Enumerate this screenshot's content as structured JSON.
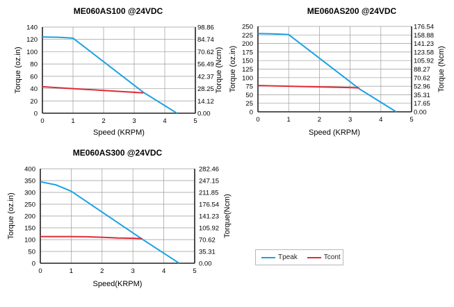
{
  "chart_data": [
    {
      "type": "line",
      "title": "ME060AS100 @24VDC",
      "xlabel": "Speed (KRPM)",
      "ylabel": "Torque (oz.in)",
      "y2label": "Torque (Ncm)",
      "xlim": [
        0,
        5
      ],
      "ylim": [
        0,
        140
      ],
      "xticks": [
        "0",
        "1",
        "2",
        "3",
        "4",
        "5"
      ],
      "yticks": [
        "0",
        "20",
        "40",
        "60",
        "80",
        "100",
        "120",
        "140"
      ],
      "y2ticks": [
        "0.00",
        "14.12",
        "28.25",
        "42.37",
        "56.49",
        "70.62",
        "84.74",
        "98.86"
      ],
      "grid": true,
      "series": [
        {
          "name": "Tpeak",
          "color": "#1ba1e2",
          "x": [
            0,
            0.5,
            1,
            3.3,
            4.4
          ],
          "y": [
            124,
            123.5,
            122,
            34,
            0
          ]
        },
        {
          "name": "Tcont",
          "color": "#e02a35",
          "x": [
            0,
            1,
            2,
            3,
            3.3
          ],
          "y": [
            43,
            40,
            37,
            34,
            33
          ]
        }
      ]
    },
    {
      "type": "line",
      "title": "ME060AS200 @24VDC",
      "xlabel": "Speed (KRPM)",
      "ylabel": "Torque (oz.in)",
      "y2label": "Torque (Ncm)",
      "xlim": [
        0,
        5
      ],
      "ylim": [
        0,
        250
      ],
      "xticks": [
        "0",
        "1",
        "2",
        "3",
        "4",
        "5"
      ],
      "yticks": [
        "0",
        "25",
        "50",
        "75",
        "100",
        "125",
        "150",
        "175",
        "200",
        "225",
        "250"
      ],
      "y2ticks": [
        "0.00",
        "17.65",
        "35.31",
        "52.96",
        "70.62",
        "88.27",
        "105.92",
        "123.58",
        "141.23",
        "158.88",
        "176.54"
      ],
      "grid": true,
      "series": [
        {
          "name": "Tpeak",
          "color": "#1ba1e2",
          "x": [
            0,
            0.5,
            1,
            3.3,
            4.5
          ],
          "y": [
            229,
            228,
            226,
            67,
            0
          ]
        },
        {
          "name": "Tcont",
          "color": "#e02a35",
          "x": [
            0,
            1,
            2,
            3,
            3.3
          ],
          "y": [
            77,
            75,
            73,
            71,
            70
          ]
        }
      ]
    },
    {
      "type": "line",
      "title": "ME060AS300 @24VDC",
      "xlabel": "Speed(KRPM)",
      "ylabel": "Torque (oz.in)",
      "y2label": "Torque(Ncm)",
      "xlim": [
        0,
        5
      ],
      "ylim": [
        0,
        400
      ],
      "xticks": [
        "0",
        "1",
        "2",
        "3",
        "4",
        "5"
      ],
      "yticks": [
        "0",
        "50",
        "100",
        "150",
        "200",
        "250",
        "300",
        "350",
        "400"
      ],
      "y2ticks": [
        "0.00",
        "35.31",
        "70.62",
        "105.92",
        "141.23",
        "176.54",
        "211.85",
        "247.15",
        "282.46"
      ],
      "grid": true,
      "series": [
        {
          "name": "Tpeak",
          "color": "#1ba1e2",
          "x": [
            0,
            0.5,
            1,
            3.3,
            4.5
          ],
          "y": [
            345,
            332,
            305,
            102,
            0
          ]
        },
        {
          "name": "Tcont",
          "color": "#e02a35",
          "x": [
            0,
            1,
            1.5,
            2,
            2.5,
            3,
            3.3
          ],
          "y": [
            113,
            113,
            112,
            110,
            107,
            106,
            104
          ]
        }
      ]
    }
  ],
  "legend": {
    "items": [
      {
        "label": "Tpeak",
        "color": "#1ba1e2"
      },
      {
        "label": "Tcont",
        "color": "#e02a35"
      }
    ]
  }
}
